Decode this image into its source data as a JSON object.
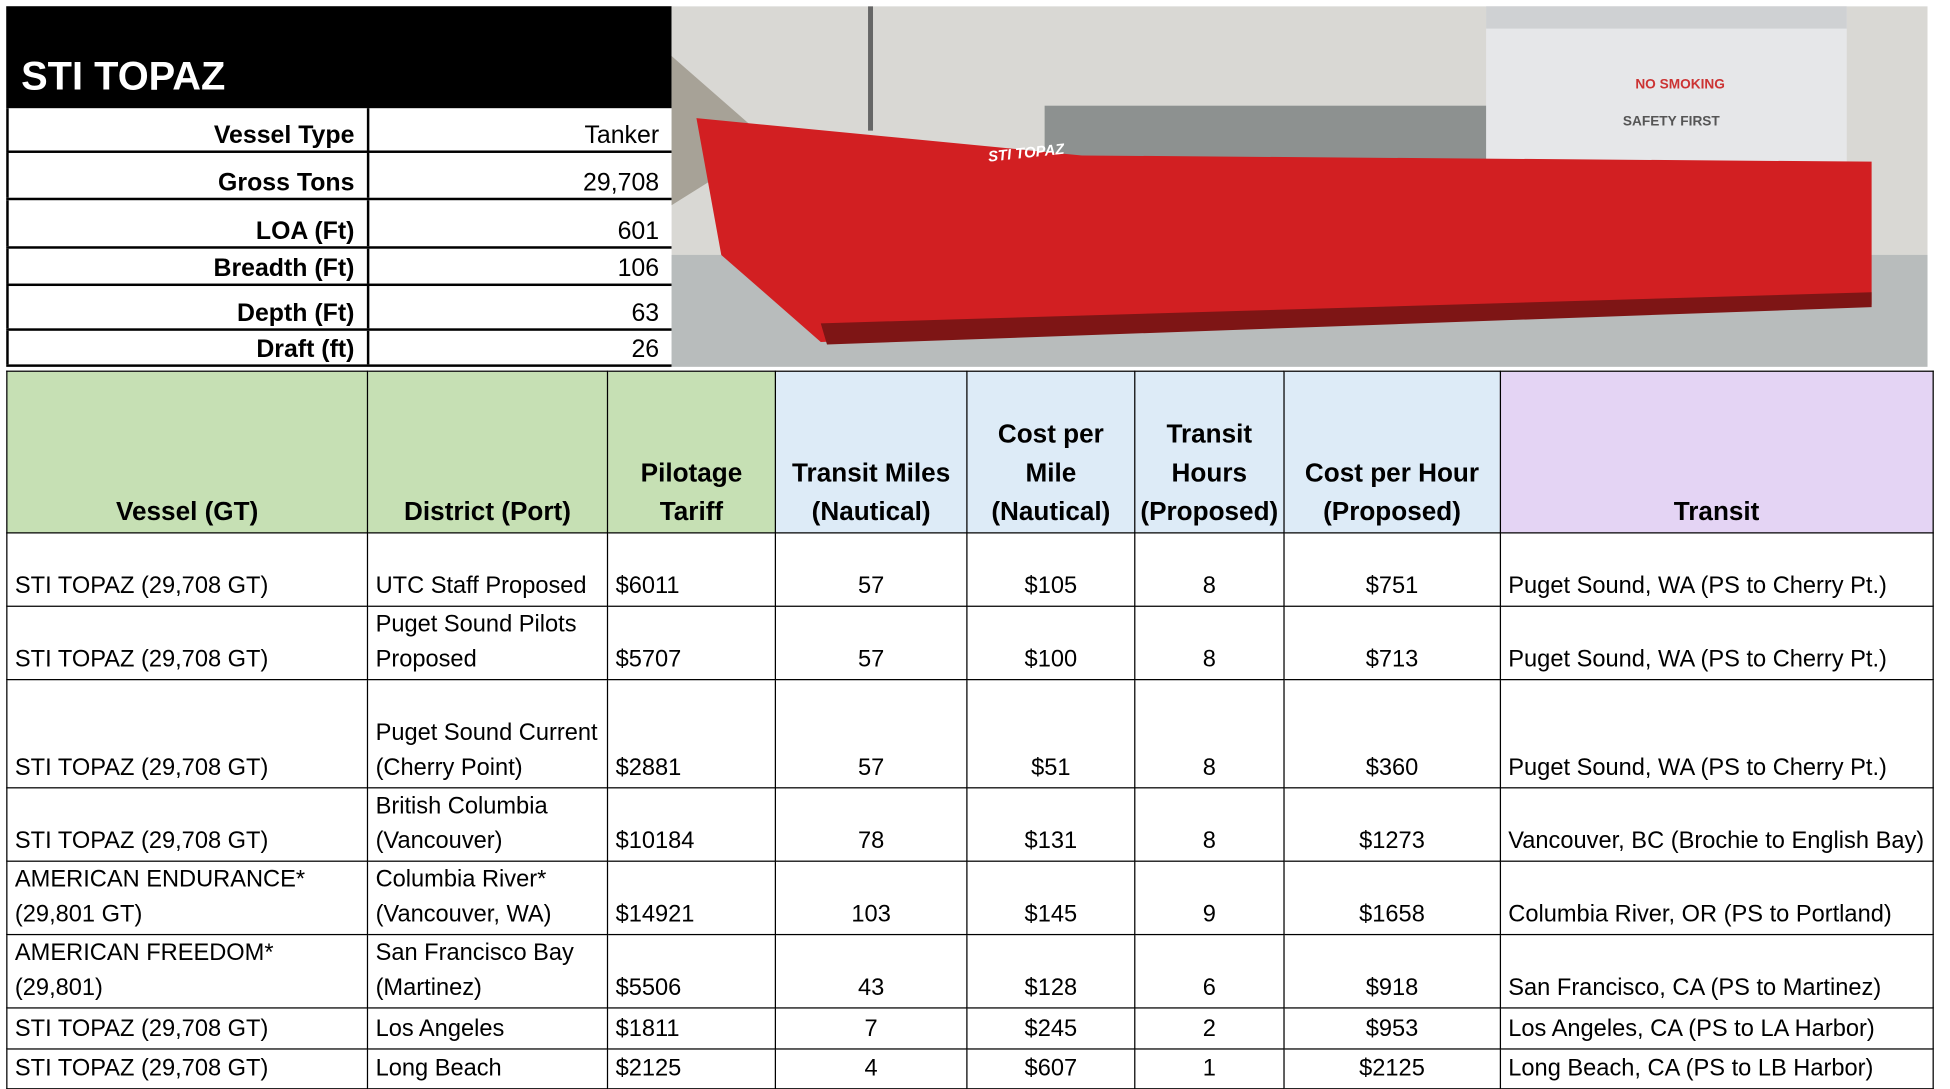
{
  "vessel": {
    "title": "STI TOPAZ",
    "specs": [
      {
        "label": "Vessel Type",
        "value": "Tanker"
      },
      {
        "label": "Gross Tons",
        "value": "29,708"
      },
      {
        "label": "LOA (Ft)",
        "value": "601"
      },
      {
        "label": "Breadth (Ft)",
        "value": "106"
      },
      {
        "label": "Depth (Ft)",
        "value": "63"
      },
      {
        "label": "Draft (ft)",
        "value": "26"
      }
    ]
  },
  "photo": {
    "hull_name": "STI TOPAZ",
    "signs": [
      "NO SMOKING",
      "SAFETY FIRST"
    ]
  },
  "table": {
    "header": [
      "Vessel (GT)",
      "District (Port)",
      "Pilotage Tariff",
      "Transit Miles (Nautical)",
      "Cost per Mile (Nautical)",
      "Transit Hours (Proposed)",
      "Cost per Hour (Proposed)",
      "Transit"
    ],
    "rows": [
      [
        "STI TOPAZ (29,708 GT)",
        "UTC Staff Proposed",
        "$6011",
        "57",
        "$105",
        "8",
        "$751",
        "Puget Sound, WA (PS to Cherry Pt.)"
      ],
      [
        "STI TOPAZ (29,708 GT)",
        "Puget Sound Pilots Proposed",
        "$5707",
        "57",
        "$100",
        "8",
        "$713",
        "Puget Sound, WA (PS to Cherry Pt.)"
      ],
      [
        "STI TOPAZ (29,708 GT)",
        "Puget Sound Current (Cherry Point)",
        "$2881",
        "57",
        "$51",
        "8",
        "$360",
        "Puget Sound, WA (PS to Cherry Pt.)"
      ],
      [
        "STI TOPAZ (29,708 GT)",
        "British Columbia (Vancouver)",
        "$10184",
        "78",
        "$131",
        "8",
        "$1273",
        "Vancouver, BC (Brochie to English Bay)"
      ],
      [
        "AMERICAN ENDURANCE* (29,801 GT)",
        "Columbia River* (Vancouver, WA)",
        "$14921",
        "103",
        "$145",
        "9",
        "$1658",
        "Columbia River, OR (PS to Portland)"
      ],
      [
        "AMERICAN FREEDOM* (29,801)",
        "San Francisco Bay (Martinez)",
        "$5506",
        "43",
        "$128",
        "6",
        "$918",
        "San Francisco, CA (PS to Martinez)"
      ],
      [
        "STI TOPAZ (29,708 GT)",
        "Los Angeles",
        "$1811",
        "7",
        "$245",
        "2",
        "$953",
        "Los Angeles, CA (PS to LA Harbor)"
      ],
      [
        "STI TOPAZ (29,708 GT)",
        "Long Beach",
        "$2125",
        "4",
        "$607",
        "1",
        "$2125",
        "Long Beach, CA (PS to LB Harbor)"
      ]
    ]
  }
}
